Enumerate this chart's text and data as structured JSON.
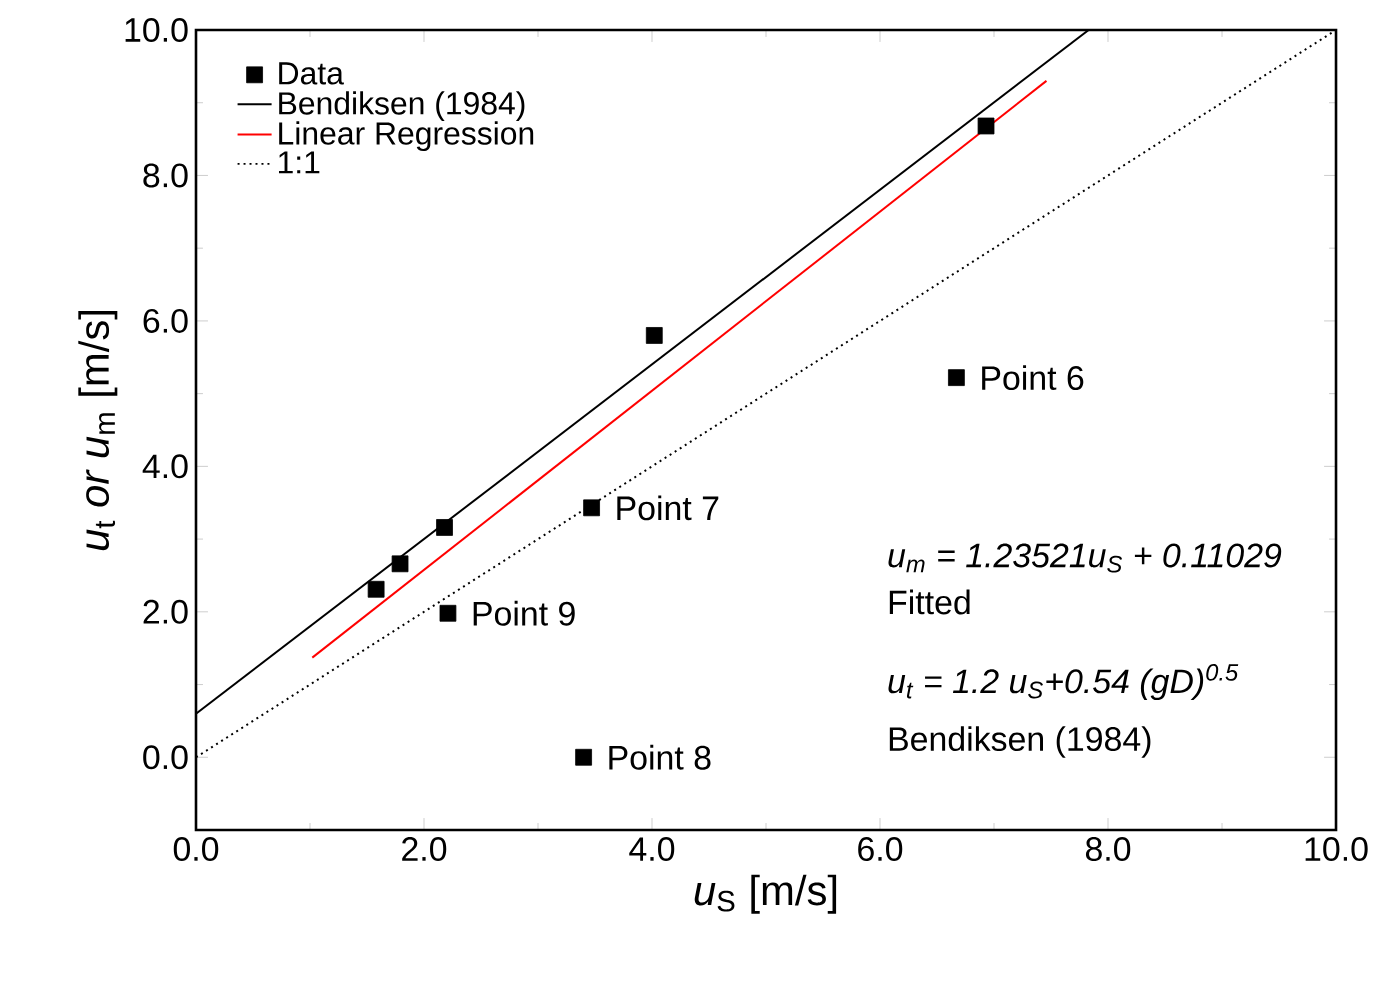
{
  "chart_data": {
    "type": "scatter",
    "xlabel": "*u*$_{S}$ [m/s]",
    "ylabel": "*u*$_{t}$ *or u*$_{m}$ [m/s]",
    "xlim": [
      0,
      10
    ],
    "ylim": [
      -1,
      10
    ],
    "xticks": [
      {
        "value": 0,
        "label": "0.0"
      },
      {
        "value": 2,
        "label": "2.0"
      },
      {
        "value": 4,
        "label": "4.0"
      },
      {
        "value": 6,
        "label": "6.0"
      },
      {
        "value": 8,
        "label": "8.0"
      },
      {
        "value": 10,
        "label": "10.0"
      }
    ],
    "yticks": [
      {
        "value": 0,
        "label": "0.0"
      },
      {
        "value": 2,
        "label": "2.0"
      },
      {
        "value": 4,
        "label": "4.0"
      },
      {
        "value": 6,
        "label": "6.0"
      },
      {
        "value": 8,
        "label": "8.0"
      },
      {
        "value": 10,
        "label": "10.0"
      }
    ],
    "legend": "top left",
    "series": [
      {
        "name": "Data",
        "marker": "square",
        "color": "#000000",
        "x": [
          1.58,
          1.79,
          2.18,
          2.21,
          3.47,
          3.4,
          4.02,
          6.67,
          6.93
        ],
        "values": [
          2.31,
          2.66,
          3.16,
          1.98,
          3.43,
          0.0,
          5.8,
          5.22,
          8.68
        ]
      },
      {
        "name": "Bendiksen (1984)",
        "type": "line",
        "marker": "none",
        "line_style": "solid",
        "color": "#000000",
        "x": [
          0,
          7.83
        ],
        "values": [
          0.6,
          10.0
        ]
      },
      {
        "name": "Linear Regression",
        "type": "line",
        "marker": "none",
        "line_style": "solid",
        "color": "#ff0000",
        "x": [
          1.02,
          7.46
        ],
        "values": [
          1.37,
          9.3
        ]
      },
      {
        "name": "1:1",
        "type": "line",
        "marker": "none",
        "line_style": "dotted",
        "color": "#000000",
        "x": [
          0,
          10
        ],
        "values": [
          0,
          10
        ]
      }
    ],
    "annotations": [
      {
        "text": "Point 6",
        "x": 6.67,
        "y": 5.22
      },
      {
        "text": "Point 7",
        "x": 3.47,
        "y": 3.43
      },
      {
        "text": "Point 9",
        "x": 2.21,
        "y": 1.98
      },
      {
        "text": "Point 8",
        "x": 3.4,
        "y": 0.0
      },
      "u$_{m}$ = 1.23521u$_{S}$ + 0.11029",
      "Fitted",
      "u$_{t}$ = 1.2 u$_{S}$+0.54 (gD)$^{0.5}$",
      "Bendiksen (1984)"
    ]
  }
}
